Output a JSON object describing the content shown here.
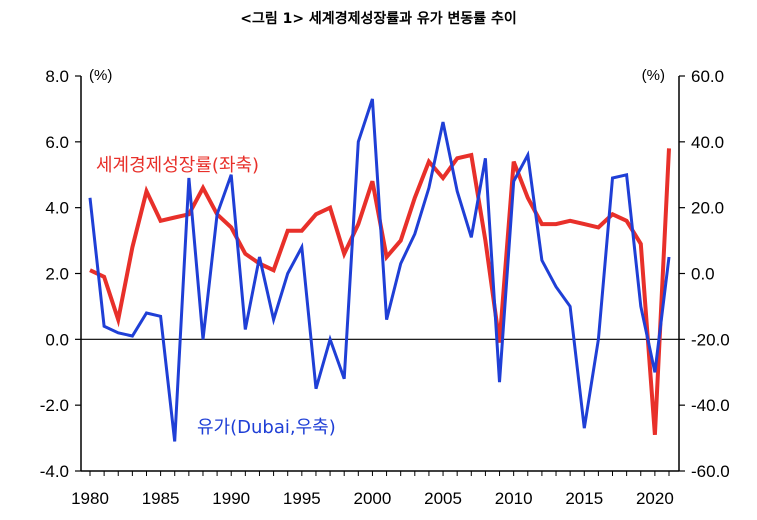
{
  "title": "<그림 1> 세계경제성장률과 유가 변동률 추이",
  "chart_data": {
    "type": "line",
    "title": "<그림 1> 세계경제성장률과 유가 변동률 추이",
    "x": [
      1980,
      1981,
      1982,
      1983,
      1984,
      1985,
      1986,
      1987,
      1988,
      1989,
      1990,
      1991,
      1992,
      1993,
      1994,
      1995,
      1996,
      1997,
      1998,
      1999,
      2000,
      2001,
      2002,
      2003,
      2004,
      2005,
      2006,
      2007,
      2008,
      2009,
      2010,
      2011,
      2012,
      2013,
      2014,
      2015,
      2016,
      2017,
      2018,
      2019,
      2020,
      2021
    ],
    "x_ticks": [
      "1980",
      "1985",
      "1990",
      "1995",
      "2000",
      "2005",
      "2010",
      "2015",
      "2020"
    ],
    "left_axis": {
      "unit": "(%)",
      "range": [
        -4.0,
        8.0
      ],
      "ticks": [
        "8.0",
        "6.0",
        "4.0",
        "2.0",
        "0.0",
        "-2.0",
        "-4.0"
      ]
    },
    "right_axis": {
      "unit": "(%)",
      "range": [
        -60.0,
        60.0
      ],
      "ticks": [
        "60.0",
        "40.0",
        "20.0",
        "0.0",
        "-20.0",
        "-40.0",
        "-60.0"
      ]
    },
    "grid": false,
    "zero_line": true,
    "series": [
      {
        "name": "세계경제성장률(좌축)",
        "axis": "left",
        "color": "#e8302a",
        "values": [
          2.1,
          1.9,
          0.6,
          2.8,
          4.5,
          3.6,
          3.7,
          3.8,
          4.6,
          3.8,
          3.4,
          2.6,
          2.3,
          2.1,
          3.3,
          3.3,
          3.8,
          4.0,
          2.6,
          3.5,
          4.8,
          2.5,
          3.0,
          4.3,
          5.4,
          4.9,
          5.5,
          5.6,
          3.0,
          -0.1,
          5.4,
          4.3,
          3.5,
          3.5,
          3.6,
          3.5,
          3.4,
          3.8,
          3.6,
          2.9,
          -2.9,
          5.8
        ]
      },
      {
        "name": "유가(Dubai,우축)",
        "axis": "right",
        "color": "#1f3fd6",
        "values": [
          23.0,
          -16.0,
          -18.0,
          -19.0,
          -12.0,
          -13.0,
          -51.0,
          29.0,
          -20.0,
          18.0,
          30.0,
          -17.0,
          5.0,
          -14.0,
          0.0,
          8.0,
          -35.0,
          -20.0,
          -32.0,
          40.0,
          53.0,
          -14.0,
          3.0,
          12.0,
          26.0,
          46.0,
          25.0,
          11.0,
          35.0,
          -33.0,
          28.0,
          36.0,
          4.0,
          -4.0,
          -10.0,
          -47.0,
          -20.0,
          29.0,
          30.0,
          -10.0,
          -30.0,
          5.0
        ]
      }
    ]
  }
}
